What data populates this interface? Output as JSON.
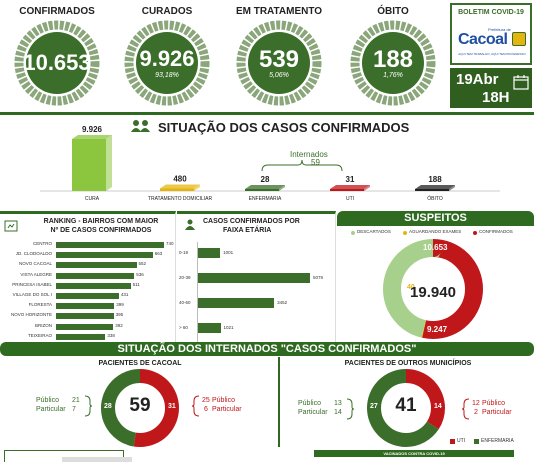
{
  "top_rings": [
    {
      "label": "CONFIRMADOS",
      "value": "10.653",
      "pct": ""
    },
    {
      "label": "CURADOS",
      "value": "9.926",
      "pct": "93,18%"
    },
    {
      "label": "EM TRATAMENTO",
      "value": "539",
      "pct": "5,06%"
    },
    {
      "label": "ÓBITO",
      "value": "188",
      "pct": "1,76%"
    }
  ],
  "boletim": {
    "title": "BOLETIM COVID-19",
    "logo_text": "Cacoal",
    "logo_small": "Prefeitura de",
    "logo_tag": "AQUI TEM TRABALHO, AQUI TEM PROGRESSO",
    "date": "19Abr",
    "time": "18H"
  },
  "situacao": {
    "title": "SITUAÇÃO DOS CASOS CONFIRMADOS",
    "internados_label": "Internados",
    "internados_value": "59",
    "categories": [
      "CURA",
      "TRATAMENTO DOMICILIAR",
      "ENFERMARIA",
      "UTI",
      "ÓBITO"
    ],
    "value_labels": [
      "9.926",
      "480",
      "28",
      "31",
      "188"
    ],
    "values": [
      9926,
      480,
      28,
      31,
      188
    ],
    "colors": [
      "#8cc63f",
      "#e5b50f",
      "#3b6e2a",
      "#c0171a",
      "#222222"
    ]
  },
  "ranking": {
    "title_l1": "RANKING - BAIRROS COM MAIOR",
    "title_l2": "Nº DE CASOS CONFIRMADOS",
    "items": [
      {
        "name": "CENTRO",
        "value": 740,
        "label": "740"
      },
      {
        "name": "JD. CLODOALDO",
        "value": 663,
        "label": "663"
      },
      {
        "name": "NOVO CACOAL",
        "value": 552,
        "label": "552"
      },
      {
        "name": "VISTA ALEGRE",
        "value": 536,
        "label": "536"
      },
      {
        "name": "PRINCESA ISABEL",
        "value": 511,
        "label": "511"
      },
      {
        "name": "VILLAGE DO SOL I",
        "value": 431,
        "label": "431"
      },
      {
        "name": "FLORESTA",
        "value": 399,
        "label": "399"
      },
      {
        "name": "NOVO HORIZONTE",
        "value": 395,
        "label": "395"
      },
      {
        "name": "BRIZON",
        "value": 392,
        "label": "392"
      },
      {
        "name": "TEIXEIRAO",
        "value": 338,
        "label": "338"
      }
    ]
  },
  "faixa": {
    "title_l1": "CASOS CONFIRMADOS POR",
    "title_l2": "FAIXA ETÁRIA",
    "items": [
      {
        "range": "0-19",
        "value": 1001,
        "label": "1001"
      },
      {
        "range": "20-39",
        "value": 5079,
        "label": "5079"
      },
      {
        "range": "40-60",
        "value": 3452,
        "label": "3452"
      },
      {
        "range": "> 60",
        "value": 1021,
        "label": "1021"
      }
    ]
  },
  "suspeitos": {
    "title": "SUSPEITOS",
    "legend": [
      "DESCARTADOS",
      "AGUARDANDO EXAMES",
      "CONFIRMADOS"
    ],
    "legend_colors": [
      "#a8d08d",
      "#e5b50f",
      "#c0171a"
    ],
    "confirmados": "10.653",
    "aguardando": "40",
    "descartados": "9.247",
    "total": "19.940",
    "values": [
      9247,
      40,
      10653
    ]
  },
  "internados": {
    "title": "SITUAÇÃO DOS INTERNADOS \"CASOS CONFIRMADOS\"",
    "cacoal": {
      "title": "PACIENTES DE CACOAL",
      "total": "59",
      "left_value": "28",
      "right_value": "31",
      "left_lines": [
        [
          "Público",
          "21"
        ],
        [
          "Particular",
          "7"
        ]
      ],
      "right_lines": [
        [
          "25",
          "Público"
        ],
        [
          "6",
          "Particular"
        ]
      ],
      "values": [
        28,
        31
      ]
    },
    "outros": {
      "title": "PACIENTES DE OUTROS MUNICÍPIOS",
      "total": "41",
      "left_value": "27",
      "right_value": "14",
      "left_lines": [
        [
          "Público",
          "13"
        ],
        [
          "Particular",
          "14"
        ]
      ],
      "right_lines": [
        [
          "12",
          "Público"
        ],
        [
          "2",
          "Particular"
        ]
      ],
      "values": [
        27,
        14
      ]
    },
    "legend": [
      "UTI",
      "ENFERMARIA"
    ],
    "legend_colors": [
      "#c0171a",
      "#3b6e2a"
    ]
  },
  "bottom": {
    "vacinados": "VACINADOS CONTRA COVID-19"
  },
  "colors": {
    "dark_green": "#2f6a21",
    "mid_green": "#3b6e2a",
    "light_green": "#8cc63f",
    "red": "#c0171a",
    "yellow": "#e5b50f"
  }
}
